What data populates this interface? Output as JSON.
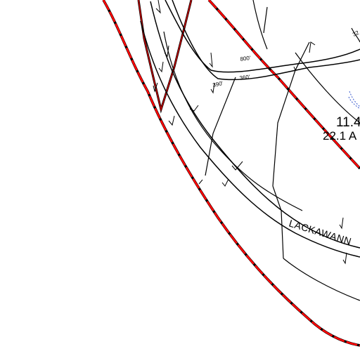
{
  "map": {
    "colors": {
      "boundary_red": "#ff0000",
      "line_black": "#000000",
      "water_blue": "#3355cc",
      "background": "#ffffff"
    },
    "dimensions": {
      "d1": "800'",
      "d2": "360'",
      "d3": "390'",
      "d4": "32"
    },
    "parcel": {
      "id_label": "11.4",
      "acreage_label": "22.1 A"
    },
    "road": {
      "name": "LACKAWANN"
    }
  }
}
